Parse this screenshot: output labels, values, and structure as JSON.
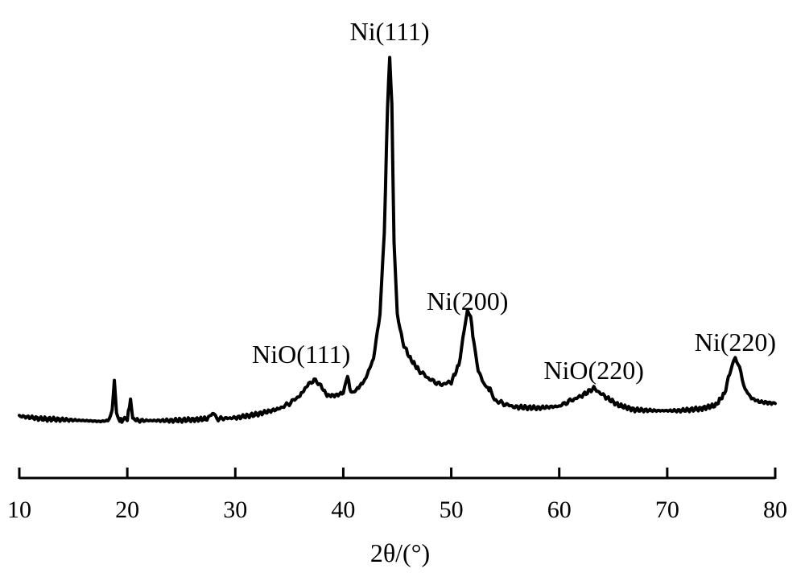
{
  "chart_data": {
    "type": "line",
    "title": "",
    "xlabel": "2θ/(°)",
    "ylabel": "",
    "xlim": [
      10,
      80
    ],
    "x_ticks": [
      10,
      20,
      30,
      40,
      50,
      60,
      70,
      80
    ],
    "y_axis_shown": false,
    "grid": false,
    "legend": "none",
    "line_color": "#000000",
    "series": [
      {
        "x": [
          10,
          12,
          14,
          16,
          17.5,
          18.2,
          18.6,
          18.8,
          19.0,
          19.2,
          19.5,
          20.0,
          20.3,
          20.5,
          20.8,
          22,
          24,
          26,
          27.5,
          27.9,
          28.3,
          30,
          32,
          34,
          35,
          36,
          36.8,
          37.3,
          37.8,
          38.5,
          39.3,
          40.0,
          40.4,
          40.6,
          40.8,
          41.2,
          42.0,
          42.8,
          43.4,
          43.8,
          44.1,
          44.3,
          44.5,
          44.7,
          45.0,
          45.5,
          46.2,
          47.0,
          48.0,
          49.0,
          50.0,
          50.7,
          51.2,
          51.5,
          51.8,
          52.1,
          52.5,
          53.0,
          53.3,
          53.6,
          54.0,
          55,
          56,
          58,
          60,
          61,
          62,
          63.2,
          64.2,
          65.5,
          67,
          69,
          71,
          73,
          74.5,
          75.3,
          75.9,
          76.3,
          76.7,
          77.2,
          77.8,
          78.5,
          79.2,
          80
        ],
        "y": [
          0.0,
          -0.3,
          -0.4,
          -0.5,
          -0.6,
          -0.5,
          0.6,
          4.0,
          0.4,
          -0.4,
          -0.5,
          -0.3,
          1.8,
          -0.2,
          -0.5,
          -0.5,
          -0.5,
          -0.4,
          -0.3,
          0.3,
          -0.3,
          -0.2,
          0.2,
          0.8,
          1.4,
          2.3,
          3.6,
          4.0,
          3.6,
          2.3,
          2.3,
          2.6,
          4.6,
          3.1,
          2.5,
          2.9,
          4.0,
          6.4,
          11.4,
          20.3,
          34.6,
          40.0,
          34.6,
          19.2,
          11.4,
          8.2,
          6.4,
          5.1,
          4.1,
          3.5,
          3.8,
          5.7,
          9.5,
          12.0,
          11.1,
          8.0,
          5.0,
          3.8,
          3.2,
          2.9,
          1.8,
          1.3,
          1.0,
          0.9,
          1.1,
          1.7,
          2.2,
          3.1,
          2.2,
          1.2,
          0.7,
          0.6,
          0.6,
          0.8,
          1.2,
          2.5,
          5.3,
          6.6,
          5.3,
          3.0,
          2.0,
          1.6,
          1.5,
          1.4
        ]
      }
    ],
    "annotations": [
      {
        "text": "Ni(111)",
        "x": 44.3
      },
      {
        "text": "NiO(111)",
        "x": 37.3
      },
      {
        "text": "Ni(200)",
        "x": 51.8
      },
      {
        "text": "NiO(220)",
        "x": 63.2
      },
      {
        "text": "Ni(220)",
        "x": 76.3
      }
    ]
  }
}
